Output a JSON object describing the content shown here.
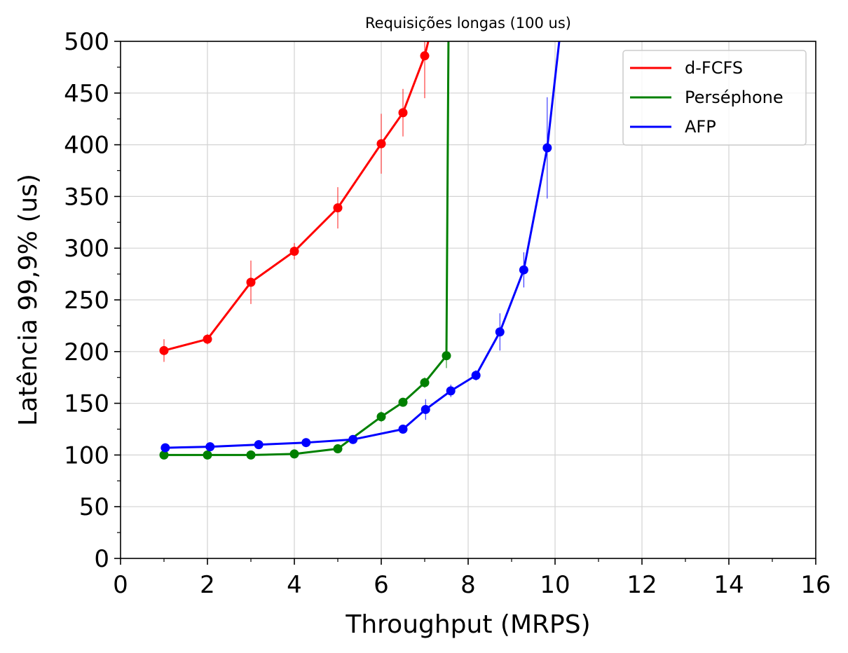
{
  "chart_data": {
    "type": "line",
    "title": "Requisições longas (100 us)",
    "xlabel": "Throughput (MRPS)",
    "ylabel": "Latência 99,9% (us)",
    "xlim": [
      0,
      16
    ],
    "ylim": [
      0,
      500
    ],
    "xticks": [
      0,
      2,
      4,
      6,
      8,
      10,
      12,
      14,
      16
    ],
    "yticks": [
      0,
      50,
      100,
      150,
      200,
      250,
      300,
      350,
      400,
      450,
      500
    ],
    "xtick_labels": [
      "0",
      "2",
      "4",
      "6",
      "8",
      "10",
      "12",
      "14",
      "16"
    ],
    "ytick_labels": [
      "0",
      "50",
      "100",
      "150",
      "200",
      "250",
      "300",
      "350",
      "400",
      "450",
      "500"
    ],
    "grid": true,
    "legend_position": "top-right",
    "series": [
      {
        "name": "d-FCFS",
        "color": "#ff0000",
        "x": [
          1.0,
          2.0,
          3.0,
          4.0,
          5.0,
          6.0,
          6.5,
          7.0
        ],
        "y": [
          201,
          212,
          267,
          297,
          339,
          401,
          431,
          486
        ],
        "err": [
          11,
          5,
          21,
          8,
          20,
          29,
          23,
          41
        ],
        "tail": [
          [
            7.2,
            520
          ]
        ]
      },
      {
        "name": "Perséphone",
        "color": "#008000",
        "x": [
          1.0,
          2.0,
          3.0,
          4.0,
          5.0,
          6.0,
          6.5,
          7.0,
          7.5
        ],
        "y": [
          100,
          100,
          100,
          101,
          106,
          137,
          151,
          170,
          196
        ],
        "err": [
          2,
          1,
          1,
          2,
          3,
          5,
          4,
          5,
          12
        ],
        "tail": [
          [
            7.55,
            520
          ]
        ]
      },
      {
        "name": "AFP",
        "color": "#0000ff",
        "x": [
          1.03,
          2.06,
          3.18,
          4.27,
          5.35,
          6.5,
          7.02,
          7.6,
          8.18,
          8.73,
          9.28,
          9.82
        ],
        "y": [
          107,
          108,
          110,
          112,
          115,
          125,
          144,
          162,
          177,
          219,
          279,
          397
        ],
        "err": [
          2,
          2,
          2,
          2,
          2,
          4,
          10,
          6,
          5,
          18,
          17,
          49
        ],
        "tail": [
          [
            10.15,
            520
          ]
        ]
      }
    ]
  }
}
